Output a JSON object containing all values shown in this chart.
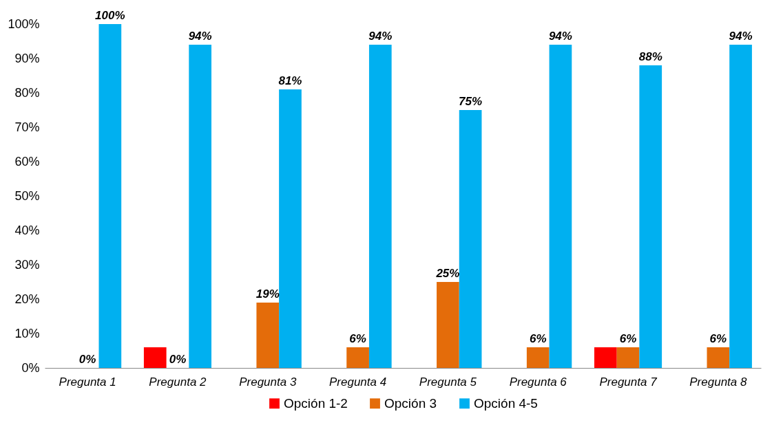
{
  "chart_data": {
    "type": "bar",
    "categories": [
      "Pregunta 1",
      "Pregunta 2",
      "Pregunta 3",
      "Pregunta 4",
      "Pregunta 5",
      "Pregunta 6",
      "Pregunta 7",
      "Pregunta 8"
    ],
    "series": [
      {
        "name": "Opción 1-2",
        "color": "#ff0000",
        "values": [
          0,
          6,
          0,
          0,
          0,
          0,
          6,
          0
        ],
        "value_labels": [
          null,
          null,
          null,
          null,
          null,
          null,
          null,
          null
        ]
      },
      {
        "name": "Opción 3",
        "color": "#e46c0a",
        "values": [
          0,
          0,
          19,
          6,
          25,
          6,
          6,
          6
        ],
        "value_labels": [
          "0%",
          "0%",
          "19%",
          "6%",
          "25%",
          "6%",
          "6%",
          "6%"
        ]
      },
      {
        "name": "Opción 4-5",
        "color": "#00b0f0",
        "values": [
          100,
          94,
          81,
          94,
          75,
          94,
          88,
          94
        ],
        "value_labels": [
          "100%",
          "94%",
          "81%",
          "94%",
          "75%",
          "94%",
          "88%",
          "94%"
        ]
      }
    ],
    "ylim": [
      0,
      100
    ],
    "yticks": [
      {
        "value": 0,
        "label": "0%"
      },
      {
        "value": 10,
        "label": "10%"
      },
      {
        "value": 20,
        "label": "20%"
      },
      {
        "value": 30,
        "label": "30%"
      },
      {
        "value": 40,
        "label": "40%"
      },
      {
        "value": 50,
        "label": "50%"
      },
      {
        "value": 60,
        "label": "60%"
      },
      {
        "value": 70,
        "label": "70%"
      },
      {
        "value": 80,
        "label": "80%"
      },
      {
        "value": 90,
        "label": "90%"
      },
      {
        "value": 100,
        "label": "100%"
      }
    ],
    "grid": false,
    "legend": "bottom"
  }
}
